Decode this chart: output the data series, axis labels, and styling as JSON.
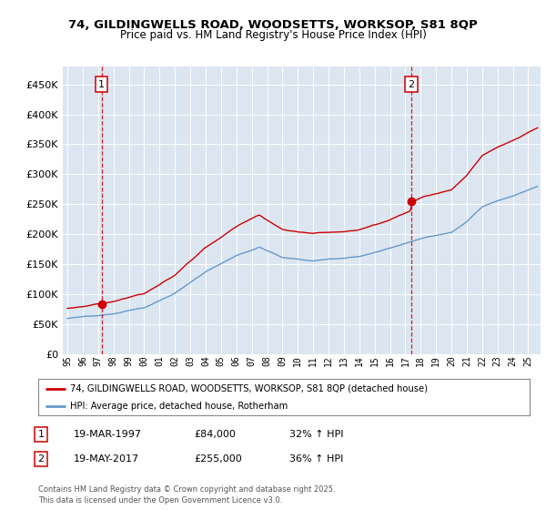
{
  "title_line1": "74, GILDINGWELLS ROAD, WOODSETTS, WORKSOP, S81 8QP",
  "title_line2": "Price paid vs. HM Land Registry's House Price Index (HPI)",
  "legend_label_red": "74, GILDINGWELLS ROAD, WOODSETTS, WORKSOP, S81 8QP (detached house)",
  "legend_label_blue": "HPI: Average price, detached house, Rotherham",
  "purchase1_date": "19-MAR-1997",
  "purchase1_price": 84000,
  "purchase1_label": "32% ↑ HPI",
  "purchase1_x": 1997.22,
  "purchase2_date": "19-MAY-2017",
  "purchase2_price": 255000,
  "purchase2_label": "36% ↑ HPI",
  "purchase2_x": 2017.38,
  "footer": "Contains HM Land Registry data © Crown copyright and database right 2025.\nThis data is licensed under the Open Government Licence v3.0.",
  "red_color": "#cc0000",
  "blue_color": "#6699cc",
  "bg_color": "#dce6f1",
  "ylim": [
    0,
    480000
  ],
  "yticks": [
    0,
    50000,
    100000,
    150000,
    200000,
    250000,
    300000,
    350000,
    400000,
    450000
  ],
  "xmin": 1994.7,
  "xmax": 2025.8,
  "xtick_start": 1995,
  "xtick_end": 2025
}
